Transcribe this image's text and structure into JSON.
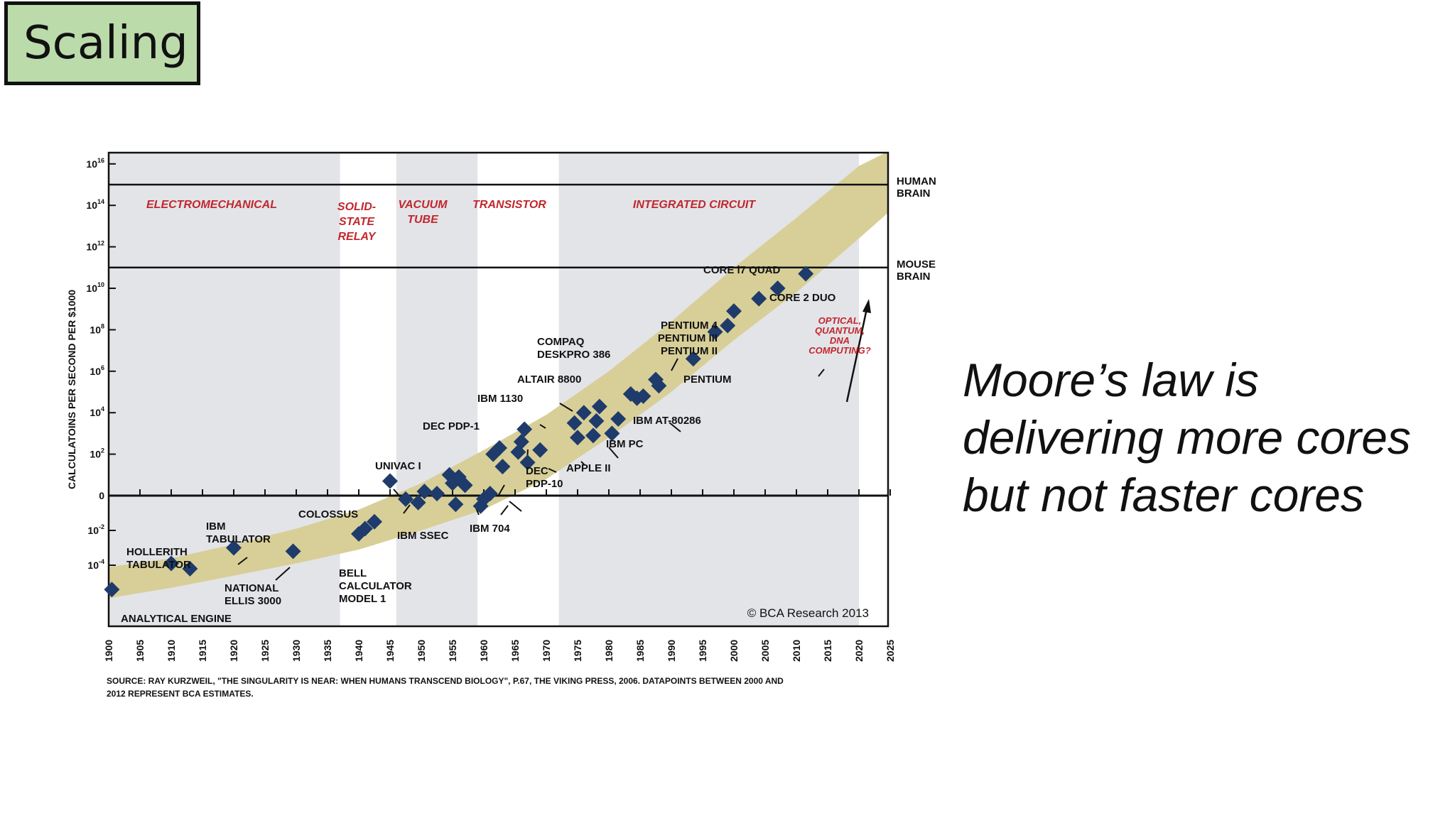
{
  "slide": {
    "title": "Scaling",
    "quote_lines": [
      "Moore’s law is",
      "delivering more cores",
      "but not faster cores"
    ]
  },
  "chart_data": {
    "type": "scatter",
    "title": "",
    "ylabel": "CALCULATOINS PER SECOND PER $1000",
    "xlabel": "",
    "x_ticks": [
      1900,
      1905,
      1910,
      1915,
      1920,
      1925,
      1930,
      1935,
      1940,
      1945,
      1950,
      1955,
      1960,
      1965,
      1970,
      1975,
      1980,
      1985,
      1990,
      1995,
      2000,
      2005,
      2010,
      2015,
      2020,
      2025
    ],
    "xlim": [
      1900,
      2026
    ],
    "y_scale": "log10",
    "y_ticks": [
      {
        "exp": 16,
        "base": "10",
        "sup": "16"
      },
      {
        "exp": 14,
        "base": "10",
        "sup": "14"
      },
      {
        "exp": 12,
        "base": "10",
        "sup": "12"
      },
      {
        "exp": 10,
        "base": "10",
        "sup": "10"
      },
      {
        "exp": 8,
        "base": "10",
        "sup": "8"
      },
      {
        "exp": 6,
        "base": "10",
        "sup": "6"
      },
      {
        "exp": 4,
        "base": "10",
        "sup": "4"
      },
      {
        "exp": 2,
        "base": "10",
        "sup": "2"
      },
      {
        "exp": 0,
        "base": "0",
        "sup": ""
      },
      {
        "exp": -2,
        "base": "10",
        "sup": "-2"
      },
      {
        "exp": -4,
        "base": "10",
        "sup": "-4"
      }
    ],
    "eras": [
      {
        "name": "ELECTROMECHANICAL",
        "lines": [
          "ELECTROMECHANICAL"
        ],
        "start": 1900,
        "end": 1937,
        "shaded": true
      },
      {
        "name": "SOLID-STATE RELAY",
        "lines": [
          "SOLID-",
          "STATE",
          "RELAY"
        ],
        "start": 1937,
        "end": 1946,
        "shaded": false
      },
      {
        "name": "VACUUM TUBE",
        "lines": [
          "VACUUM",
          "TUBE"
        ],
        "start": 1946,
        "end": 1959,
        "shaded": true
      },
      {
        "name": "TRANSISTOR",
        "lines": [
          "TRANSISTOR"
        ],
        "start": 1959,
        "end": 1972,
        "shaded": false
      },
      {
        "name": "INTEGRATED CIRCUIT",
        "lines": [
          "INTEGRATED CIRCUIT"
        ],
        "start": 1972,
        "end": 2020,
        "shaded": true
      }
    ],
    "reference_lines": [
      {
        "label_lines": [
          "HUMAN",
          "BRAIN"
        ],
        "log10_value": 15
      },
      {
        "label_lines": [
          "MOUSE",
          "BRAIN"
        ],
        "log10_value": 11
      }
    ],
    "band": {
      "lower": [
        [
          1900,
          -5.9
        ],
        [
          1910,
          -5.3
        ],
        [
          1920,
          -4.6
        ],
        [
          1930,
          -3.9
        ],
        [
          1940,
          -3.1
        ],
        [
          1950,
          -2.0
        ],
        [
          1960,
          -0.8
        ],
        [
          1970,
          0.8
        ],
        [
          1980,
          2.8
        ],
        [
          1990,
          5.0
        ],
        [
          2000,
          7.5
        ],
        [
          2010,
          9.8
        ],
        [
          2020,
          12.4
        ],
        [
          2026,
          14.0
        ]
      ],
      "upper": [
        [
          1900,
          -4.1
        ],
        [
          1910,
          -3.6
        ],
        [
          1920,
          -2.8
        ],
        [
          1930,
          -1.9
        ],
        [
          1940,
          -0.8
        ],
        [
          1950,
          0.6
        ],
        [
          1960,
          2.2
        ],
        [
          1970,
          3.9
        ],
        [
          1980,
          6.0
        ],
        [
          1990,
          8.4
        ],
        [
          2000,
          11.0
        ],
        [
          2010,
          13.4
        ],
        [
          2020,
          15.9
        ],
        [
          2026,
          16.8
        ]
      ]
    },
    "points": [
      {
        "name": "ANALYTICAL ENGINE",
        "x": 1900.5,
        "log10_y": -5.4
      },
      {
        "name": "HOLLERITH TABULATOR",
        "x": 1910,
        "log10_y": -3.9
      },
      {
        "name": "HOLLERITH TABULATOR",
        "x": 1913,
        "log10_y": -4.2
      },
      {
        "name": "IBM TABULATOR",
        "x": 1920,
        "log10_y": -3.0
      },
      {
        "name": "NATIONAL ELLIS 3000",
        "x": 1929.5,
        "log10_y": -3.2
      },
      {
        "name": "BELL CALCULATOR MODEL 1",
        "x": 1940,
        "log10_y": -2.2
      },
      {
        "name": "BELL CALCULATOR MODEL 1",
        "x": 1941,
        "log10_y": -1.9
      },
      {
        "name": "COLOSSUS",
        "x": 1942.5,
        "log10_y": -1.5
      },
      {
        "name": "UNIVAC I",
        "x": 1945,
        "log10_y": 0.7
      },
      {
        "name": "IBM SSEC",
        "x": 1947.5,
        "log10_y": -0.2
      },
      {
        "name": "IBM SSEC",
        "x": 1949.5,
        "log10_y": -0.4
      },
      {
        "name": "IBM SSEC",
        "x": 1950.5,
        "log10_y": 0.2
      },
      {
        "name": "IBM SSEC",
        "x": 1952.5,
        "log10_y": 0.1
      },
      {
        "name": "UNIVAC I",
        "x": 1954.5,
        "log10_y": 1.0
      },
      {
        "name": "UNIVAC I",
        "x": 1955,
        "log10_y": 0.6
      },
      {
        "name": "UNIVAC I",
        "x": 1956,
        "log10_y": 0.9
      },
      {
        "name": "UNIVAC I",
        "x": 1957,
        "log10_y": 0.5
      },
      {
        "name": "IBM SSEC",
        "x": 1955.5,
        "log10_y": -0.5
      },
      {
        "name": "IBM 704",
        "x": 1959.5,
        "log10_y": -0.6
      },
      {
        "name": "IBM 704",
        "x": 1960,
        "log10_y": -0.2
      },
      {
        "name": "IBM 704",
        "x": 1961,
        "log10_y": 0.1
      },
      {
        "name": "DEC PDP-1",
        "x": 1961.5,
        "log10_y": 2.0
      },
      {
        "name": "DEC PDP-1",
        "x": 1962.5,
        "log10_y": 2.3
      },
      {
        "name": "DEC PDP-1",
        "x": 1963,
        "log10_y": 1.4
      },
      {
        "name": "IBM 1130",
        "x": 1965.5,
        "log10_y": 2.1
      },
      {
        "name": "IBM 1130",
        "x": 1966,
        "log10_y": 2.6
      },
      {
        "name": "IBM 1130",
        "x": 1966.5,
        "log10_y": 3.2
      },
      {
        "name": "DEC PDP-10",
        "x": 1967,
        "log10_y": 1.6
      },
      {
        "name": "DEC PDP-10",
        "x": 1969,
        "log10_y": 2.2
      },
      {
        "name": "ALTAIR 8800",
        "x": 1974.5,
        "log10_y": 3.5
      },
      {
        "name": "ALTAIR 8800",
        "x": 1975,
        "log10_y": 2.8
      },
      {
        "name": "ALTAIR 8800",
        "x": 1976,
        "log10_y": 4.0
      },
      {
        "name": "APPLE II",
        "x": 1977.5,
        "log10_y": 2.9
      },
      {
        "name": "APPLE II",
        "x": 1978,
        "log10_y": 3.6
      },
      {
        "name": "APPLE II",
        "x": 1978.5,
        "log10_y": 4.3
      },
      {
        "name": "IBM PC",
        "x": 1980.5,
        "log10_y": 3.0
      },
      {
        "name": "IBM PC",
        "x": 1981.5,
        "log10_y": 3.7
      },
      {
        "name": "IBM AT-80286",
        "x": 1983.5,
        "log10_y": 4.9
      },
      {
        "name": "IBM AT-80286",
        "x": 1984.5,
        "log10_y": 4.7
      },
      {
        "name": "IBM AT-80286",
        "x": 1985.5,
        "log10_y": 4.8
      },
      {
        "name": "COMPAQ DESKPRO 386",
        "x": 1987.5,
        "log10_y": 5.6
      },
      {
        "name": "COMPAQ DESKPRO 386",
        "x": 1988,
        "log10_y": 5.3
      },
      {
        "name": "PENTIUM",
        "x": 1993.5,
        "log10_y": 6.6
      },
      {
        "name": "PENTIUM II",
        "x": 1997,
        "log10_y": 7.9
      },
      {
        "name": "PENTIUM III",
        "x": 1999,
        "log10_y": 8.2
      },
      {
        "name": "PENTIUM 4",
        "x": 2000,
        "log10_y": 8.9
      },
      {
        "name": "CORE 2 DUO",
        "x": 2004,
        "log10_y": 9.5
      },
      {
        "name": "CORE 2 DUO",
        "x": 2007,
        "log10_y": 10.0
      },
      {
        "name": "CORE i7 QUAD",
        "x": 2011.5,
        "log10_y": 10.7
      }
    ],
    "annotations": [
      {
        "lines": [
          "ANALYTICAL ENGINE"
        ]
      },
      {
        "lines": [
          "HOLLERITH",
          "TABULATOR"
        ]
      },
      {
        "lines": [
          "IBM",
          "TABULATOR"
        ]
      },
      {
        "lines": [
          "NATIONAL",
          "ELLIS 3000"
        ]
      },
      {
        "lines": [
          "COLOSSUS"
        ]
      },
      {
        "lines": [
          "BELL",
          "CALCULATOR",
          "MODEL 1"
        ]
      },
      {
        "lines": [
          "IBM SSEC"
        ]
      },
      {
        "lines": [
          "UNIVAC I"
        ]
      },
      {
        "lines": [
          "IBM 704"
        ]
      },
      {
        "lines": [
          "DEC PDP-1"
        ]
      },
      {
        "lines": [
          "IBM 1130"
        ]
      },
      {
        "lines": [
          "DEC",
          "PDP-10"
        ]
      },
      {
        "lines": [
          "ALTAIR 8800"
        ]
      },
      {
        "lines": [
          "APPLE II"
        ]
      },
      {
        "lines": [
          "IBM PC"
        ]
      },
      {
        "lines": [
          "IBM AT-80286"
        ]
      },
      {
        "lines": [
          "COMPAQ",
          "DESKPRO 386"
        ]
      },
      {
        "lines": [
          "PENTIUM"
        ]
      },
      {
        "lines": [
          "PENTIUM 4",
          "PENTIUM III",
          "PENTIUM II"
        ]
      },
      {
        "lines": [
          "CORE 2 DUO"
        ]
      },
      {
        "lines": [
          "CORE i7 QUAD"
        ]
      },
      {
        "lines": [
          "OPTICAL,",
          "QUANTUM,",
          "DNA",
          "COMPUTING?"
        ]
      }
    ],
    "copyright": "© BCA Research 2013",
    "source_lines": [
      "SOURCE: RAY KURZWEIL, \"THE SINGULARITY IS NEAR: WHEN HUMANS TRANSCEND BIOLOGY\", P.67, THE VIKING PRESS, 2006. DATAPOINTS BETWEEN 2000 AND",
      "2012 REPRESENT BCA ESTIMATES."
    ],
    "colors": {
      "marker": "#1f3b6b",
      "band": "#d8cf98",
      "era_shade": "#e3e4e8",
      "era_label": "#c1272d",
      "axis": "#111111"
    }
  }
}
